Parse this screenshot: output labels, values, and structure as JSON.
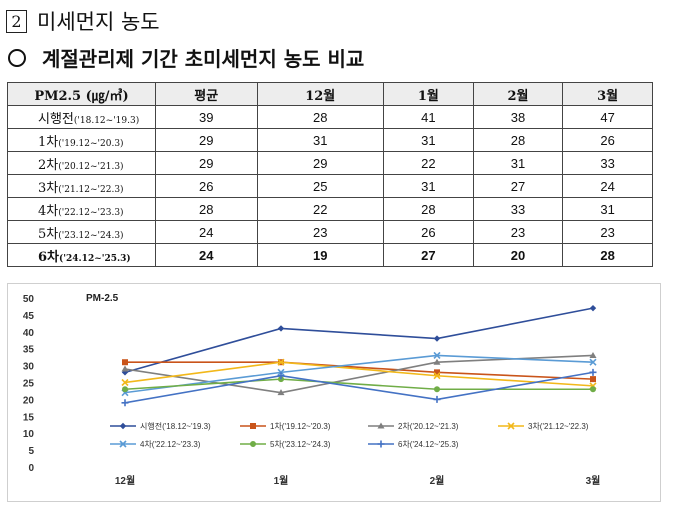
{
  "heading": {
    "number": "2",
    "title": "미세먼지 농도"
  },
  "subheading": {
    "marker": "○",
    "title": "계절관리제 기간 초미세먼지 농도 비교"
  },
  "table": {
    "headers": [
      "PM2.5 (㎍/㎥)",
      "평균",
      "12월",
      "1월",
      "2월",
      "3월"
    ],
    "rows": [
      {
        "label": "시행전",
        "period": "('18.12~'19.3)",
        "values": [
          "39",
          "28",
          "41",
          "38",
          "47"
        ],
        "bold": false
      },
      {
        "label": "1차",
        "period": "('19.12~'20.3)",
        "values": [
          "29",
          "31",
          "31",
          "28",
          "26"
        ],
        "bold": false
      },
      {
        "label": "2차",
        "period": "('20.12~'21.3)",
        "values": [
          "29",
          "29",
          "22",
          "31",
          "33"
        ],
        "bold": false
      },
      {
        "label": "3차",
        "period": "('21.12~'22.3)",
        "values": [
          "26",
          "25",
          "31",
          "27",
          "24"
        ],
        "bold": false
      },
      {
        "label": "4차",
        "period": "('22.12~'23.3)",
        "values": [
          "28",
          "22",
          "28",
          "33",
          "31"
        ],
        "bold": false
      },
      {
        "label": "5차",
        "period": "('23.12~'24.3)",
        "values": [
          "24",
          "23",
          "26",
          "23",
          "23"
        ],
        "bold": false
      },
      {
        "label": "6차",
        "period": "('24.12~'25.3)",
        "values": [
          "24",
          "19",
          "27",
          "20",
          "28"
        ],
        "bold": true
      }
    ]
  },
  "chart_data": {
    "type": "line",
    "title": "PM-2.5",
    "categories": [
      "12월",
      "1월",
      "2월",
      "3월"
    ],
    "ylim": [
      0,
      50
    ],
    "yticks": [
      0,
      5,
      10,
      15,
      20,
      25,
      30,
      35,
      40,
      45,
      50
    ],
    "legend_position": "bottom",
    "series": [
      {
        "name": "시행전('18.12~'19.3)",
        "values": [
          28,
          41,
          38,
          47
        ],
        "color": "#2f4e9a",
        "marker": "diamond"
      },
      {
        "name": "1차('19.12~'20.3)",
        "values": [
          31,
          31,
          28,
          26
        ],
        "color": "#c9541a",
        "marker": "square"
      },
      {
        "name": "2차('20.12~'21.3)",
        "values": [
          29,
          22,
          31,
          33
        ],
        "color": "#7f7f7f",
        "marker": "triangle"
      },
      {
        "name": "3차('21.12~'22.3)",
        "values": [
          25,
          31,
          27,
          24
        ],
        "color": "#f2b81a",
        "marker": "x"
      },
      {
        "name": "4차('22.12~'23.3)",
        "values": [
          22,
          28,
          33,
          31
        ],
        "color": "#5a9bd5",
        "marker": "x"
      },
      {
        "name": "5차('23.12~'24.3)",
        "values": [
          23,
          26,
          23,
          23
        ],
        "color": "#70ad47",
        "marker": "circle"
      },
      {
        "name": "6차('24.12~'25.3)",
        "values": [
          19,
          27,
          20,
          28
        ],
        "color": "#4472c4",
        "marker": "plus"
      }
    ]
  }
}
